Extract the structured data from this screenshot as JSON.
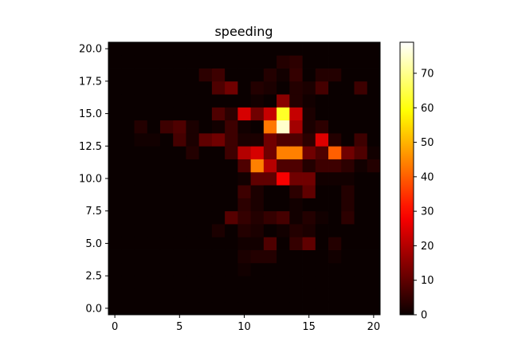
{
  "chart_data": {
    "type": "heatmap",
    "title": "speeding",
    "xlabel": "",
    "ylabel": "",
    "colormap": "hot",
    "origin": "lower",
    "x_range": [
      -0.5,
      20.5
    ],
    "y_range": [
      -0.5,
      20.5
    ],
    "x_ticks": [
      0,
      5,
      10,
      15,
      20
    ],
    "x_tick_labels": [
      "0",
      "5",
      "10",
      "15",
      "20"
    ],
    "y_ticks": [
      0,
      2.5,
      5,
      7.5,
      10,
      12.5,
      15,
      17.5,
      20
    ],
    "y_tick_labels": [
      "0.0",
      "2.5",
      "5.0",
      "7.5",
      "10.0",
      "12.5",
      "15.0",
      "17.5",
      "20.0"
    ],
    "colorbar": {
      "range": [
        0,
        79
      ],
      "ticks": [
        0,
        10,
        20,
        30,
        40,
        50,
        60,
        70
      ],
      "tick_labels": [
        "0",
        "10",
        "20",
        "30",
        "40",
        "50",
        "60",
        "70"
      ]
    },
    "grid": [
      [
        0,
        0,
        0,
        0,
        0,
        0,
        0,
        0,
        0,
        0,
        0,
        0,
        0,
        0,
        0,
        0,
        0,
        0,
        0,
        0,
        0
      ],
      [
        0,
        0,
        0,
        0,
        0,
        0,
        0,
        0,
        0,
        0,
        0,
        0,
        0,
        0,
        0,
        0,
        0,
        0,
        0,
        0,
        0
      ],
      [
        0,
        0,
        0,
        0,
        0,
        0,
        0,
        0,
        0,
        0,
        0,
        0,
        0,
        0,
        0,
        0,
        0,
        0,
        0,
        0,
        0
      ],
      [
        0,
        0,
        0,
        0,
        0,
        0,
        0,
        0,
        0,
        0,
        1,
        0,
        0,
        0,
        0,
        0,
        0,
        0,
        0,
        0,
        0
      ],
      [
        0,
        0,
        0,
        0,
        0,
        0,
        0,
        0,
        0,
        0,
        2,
        3,
        3,
        0,
        0,
        0,
        0,
        1,
        0,
        0,
        0
      ],
      [
        0,
        0,
        0,
        0,
        0,
        0,
        0,
        0,
        0,
        0,
        1,
        1,
        8,
        0,
        5,
        10,
        0,
        3,
        0,
        0,
        0
      ],
      [
        0,
        0,
        0,
        0,
        0,
        0,
        0,
        0,
        2,
        0,
        3,
        2,
        0,
        1,
        3,
        2,
        0,
        0,
        0,
        0,
        0
      ],
      [
        0,
        0,
        0,
        0,
        0,
        0,
        0,
        0,
        0,
        9,
        5,
        3,
        5,
        7,
        1,
        3,
        1,
        0,
        4,
        0,
        0
      ],
      [
        0,
        0,
        0,
        0,
        0,
        0,
        0,
        0,
        0,
        0,
        4,
        2,
        0,
        0,
        1,
        0,
        0,
        0,
        3,
        0,
        0
      ],
      [
        0,
        0,
        0,
        0,
        0,
        0,
        0,
        0,
        0,
        0,
        6,
        2,
        0,
        0,
        4,
        10,
        0,
        0,
        3,
        0,
        0
      ],
      [
        0,
        0,
        0,
        0,
        0,
        0,
        0,
        0,
        0,
        0,
        1,
        10,
        10,
        28,
        12,
        12,
        1,
        1,
        1,
        0,
        0
      ],
      [
        0,
        0,
        0,
        0,
        0,
        0,
        0,
        0,
        0,
        0,
        8,
        44,
        20,
        8,
        8,
        3,
        6,
        6,
        4,
        1,
        3
      ],
      [
        0,
        0,
        0,
        0,
        0,
        0,
        3,
        0,
        0,
        6,
        20,
        24,
        12,
        44,
        44,
        12,
        8,
        40,
        12,
        8,
        1
      ],
      [
        0,
        0,
        1,
        1,
        0,
        7,
        2,
        10,
        12,
        6,
        2,
        2,
        12,
        8,
        8,
        4,
        25,
        3,
        0,
        6,
        0
      ],
      [
        0,
        0,
        3,
        0,
        6,
        8,
        2,
        0,
        1,
        6,
        1,
        0,
        43,
        75,
        18,
        2,
        4,
        0,
        0,
        0,
        0
      ],
      [
        0,
        0,
        0,
        0,
        0,
        0,
        0,
        0,
        8,
        4,
        24,
        12,
        22,
        62,
        22,
        2,
        0,
        0,
        0,
        0,
        0
      ],
      [
        0,
        0,
        0,
        0,
        0,
        0,
        0,
        0,
        0,
        0,
        0,
        1,
        0,
        15,
        3,
        1,
        0,
        0,
        0,
        0,
        0
      ],
      [
        0,
        0,
        0,
        0,
        0,
        0,
        0,
        0,
        8,
        12,
        0,
        3,
        2,
        0,
        3,
        2,
        7,
        0,
        0,
        6,
        0
      ],
      [
        0,
        0,
        0,
        0,
        0,
        0,
        0,
        4,
        6,
        0,
        0,
        0,
        3,
        1,
        5,
        0,
        3,
        3,
        0,
        0,
        0
      ],
      [
        0,
        0,
        0,
        0,
        0,
        0,
        0,
        0,
        0,
        0,
        0,
        0,
        0,
        3,
        4,
        0,
        0,
        0,
        0,
        0,
        0
      ],
      [
        0,
        0,
        0,
        0,
        0,
        0,
        0,
        0,
        0,
        0,
        0,
        0,
        0,
        0,
        0,
        0,
        0,
        0,
        0,
        0,
        0
      ]
    ]
  }
}
